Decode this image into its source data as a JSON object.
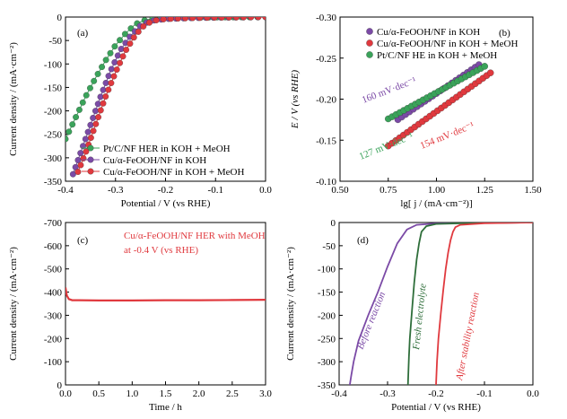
{
  "chart_data": [
    {
      "panel_label": "(a)",
      "type": "scatter",
      "xlabel": "Potential / V (vs RHE)",
      "ylabel": "Current density / (mA·cm⁻²)",
      "xlim": [
        -0.4,
        0.0
      ],
      "ylim": [
        -350,
        0
      ],
      "xticks": [
        "-0.4",
        "-0.3",
        "-0.2",
        "-0.1",
        "0.0"
      ],
      "yticks": [
        "-350",
        "-300",
        "-250",
        "-200",
        "-150",
        "-100",
        "-50",
        "0"
      ],
      "xtick_values": [
        -0.4,
        -0.3,
        -0.2,
        -0.1,
        0.0
      ],
      "ytick_values": [
        -350,
        -300,
        -250,
        -200,
        -150,
        -100,
        -50,
        0
      ],
      "legend_position": "bottom-left",
      "series": [
        {
          "name": "Pt/C/NF HER in KOH + MeOH",
          "color": "#3aa35a",
          "x": [
            -0.4,
            -0.38,
            -0.36,
            -0.34,
            -0.32,
            -0.3,
            -0.28,
            -0.26,
            -0.24,
            -0.22,
            -0.2,
            -0.18,
            -0.15,
            -0.1,
            -0.05,
            0.0
          ],
          "y": [
            -260,
            -215,
            -170,
            -130,
            -93,
            -60,
            -35,
            -15,
            -6,
            -3,
            -2,
            -1.5,
            -1,
            -0.5,
            -0.2,
            0
          ]
        },
        {
          "name": "Cu/α-FeOOH/NF in KOH",
          "color": "#7b4aa6",
          "x": [
            -0.385,
            -0.37,
            -0.35,
            -0.33,
            -0.31,
            -0.29,
            -0.27,
            -0.25,
            -0.23,
            -0.2,
            -0.15,
            -0.1,
            -0.05,
            0.0
          ],
          "y": [
            -335,
            -290,
            -230,
            -170,
            -115,
            -70,
            -40,
            -18,
            -8,
            -4,
            -2,
            -1,
            -0.5,
            0
          ]
        },
        {
          "name": "Cu/α-FeOOH/NF in KOH + MeOH",
          "color": "#e0393e",
          "x": [
            -0.375,
            -0.36,
            -0.34,
            -0.32,
            -0.3,
            -0.28,
            -0.26,
            -0.24,
            -0.22,
            -0.2,
            -0.15,
            -0.1,
            -0.05,
            0.0
          ],
          "y": [
            -330,
            -290,
            -230,
            -170,
            -118,
            -72,
            -38,
            -15,
            -7,
            -4,
            -2,
            -1,
            -0.5,
            0
          ]
        }
      ]
    },
    {
      "panel_label": "(b)",
      "type": "scatter",
      "xlabel": "lg[ j / (mA·cm⁻²)]",
      "ylabel": "E / V (vs RHE)",
      "xlim": [
        0.5,
        1.5
      ],
      "ylim": [
        -0.1,
        -0.3
      ],
      "xticks": [
        "0.50",
        "0.75",
        "1.00",
        "1.25",
        "1.50"
      ],
      "yticks": [
        "-0.10",
        "-0.15",
        "-0.20",
        "-0.25",
        "-0.30"
      ],
      "xtick_values": [
        0.5,
        0.75,
        1.0,
        1.25,
        1.5
      ],
      "ytick_values": [
        -0.1,
        -0.15,
        -0.2,
        -0.25,
        -0.3
      ],
      "legend_position": "top-right",
      "series": [
        {
          "name": "Cu/α-FeOOH/NF in KOH",
          "color": "#7b4aa6",
          "x": [
            0.8,
            1.22
          ],
          "y": [
            -0.175,
            -0.242
          ]
        },
        {
          "name": "Cu/α-FeOOH/NF in KOH + MeOH",
          "color": "#e0393e",
          "x": [
            0.75,
            1.28
          ],
          "y": [
            -0.143,
            -0.232
          ]
        },
        {
          "name": "Pt/C/NF HE in KOH + MeOH",
          "color": "#3aa35a",
          "x": [
            0.75,
            1.25
          ],
          "y": [
            -0.176,
            -0.24
          ]
        }
      ],
      "annotations": [
        {
          "text": "160 mV·dec⁻¹",
          "color": "#7b4aa6"
        },
        {
          "text": "127 mV·dec⁻¹",
          "color": "#3aa35a"
        },
        {
          "text": "154 mV·dec⁻¹",
          "color": "#e0393e"
        }
      ]
    },
    {
      "panel_label": "(c)",
      "type": "line",
      "xlabel": "Time / h",
      "ylabel": "Current density / (mA·cm⁻²)",
      "xlim": [
        0.0,
        3.0
      ],
      "ylim": [
        0,
        -700
      ],
      "xticks": [
        "0.0",
        "0.5",
        "1.0",
        "1.5",
        "2.0",
        "2.5",
        "3.0"
      ],
      "yticks": [
        "0",
        "-100",
        "-200",
        "-300",
        "-400",
        "-500",
        "-600",
        "-700"
      ],
      "xtick_values": [
        0,
        0.5,
        1.0,
        1.5,
        2.0,
        2.5,
        3.0
      ],
      "ytick_values": [
        0,
        -100,
        -200,
        -300,
        -400,
        -500,
        -600,
        -700
      ],
      "annotation_lines": [
        "Cu/α-FeOOH/NF HER with MeOH",
        "at -0.4 V (vs RHE)"
      ],
      "series": [
        {
          "color": "#e0393e",
          "x": [
            0.0,
            0.02,
            0.05,
            0.1,
            0.2,
            0.5,
            1.0,
            1.5,
            2.0,
            2.5,
            3.0
          ],
          "y": [
            -420,
            -385,
            -370,
            -365,
            -365,
            -364,
            -364,
            -365,
            -365,
            -366,
            -367
          ]
        }
      ]
    },
    {
      "panel_label": "(d)",
      "type": "line",
      "xlabel": "Potential / V (vs RHE)",
      "ylabel": "Current density / (mA·cm⁻²)",
      "xlim": [
        -0.4,
        0.0
      ],
      "ylim": [
        -350,
        0
      ],
      "xticks": [
        "-0.4",
        "-0.3",
        "-0.2",
        "-0.1",
        "0.0"
      ],
      "yticks": [
        "-350",
        "-300",
        "-250",
        "-200",
        "-150",
        "-100",
        "-50",
        "0"
      ],
      "xtick_values": [
        -0.4,
        -0.3,
        -0.2,
        -0.1,
        0.0
      ],
      "ytick_values": [
        -350,
        -300,
        -250,
        -200,
        -150,
        -100,
        -50,
        0
      ],
      "series": [
        {
          "name": "Before reaction",
          "color": "#7b4aa6",
          "x": [
            -0.378,
            -0.375,
            -0.37,
            -0.36,
            -0.34,
            -0.32,
            -0.3,
            -0.28,
            -0.26,
            -0.24,
            -0.2,
            -0.1,
            0.0
          ],
          "y": [
            -350,
            -330,
            -300,
            -255,
            -200,
            -150,
            -95,
            -45,
            -15,
            -5,
            -2,
            -1,
            0
          ]
        },
        {
          "name": "Fresh electrolyte",
          "color": "#2e6e3a",
          "x": [
            -0.258,
            -0.256,
            -0.254,
            -0.25,
            -0.245,
            -0.24,
            -0.235,
            -0.23,
            -0.22,
            -0.2,
            -0.15,
            -0.1,
            0.0
          ],
          "y": [
            -350,
            -290,
            -250,
            -195,
            -130,
            -80,
            -45,
            -20,
            -8,
            -3,
            -1.5,
            -1,
            0
          ]
        },
        {
          "name": "After stability reaction",
          "color": "#e0393e",
          "x": [
            -0.2,
            -0.198,
            -0.195,
            -0.19,
            -0.185,
            -0.18,
            -0.175,
            -0.17,
            -0.165,
            -0.16,
            -0.15,
            -0.1,
            0.0
          ],
          "y": [
            -350,
            -300,
            -250,
            -195,
            -145,
            -100,
            -65,
            -38,
            -20,
            -10,
            -5,
            -1.5,
            0
          ]
        }
      ]
    }
  ]
}
